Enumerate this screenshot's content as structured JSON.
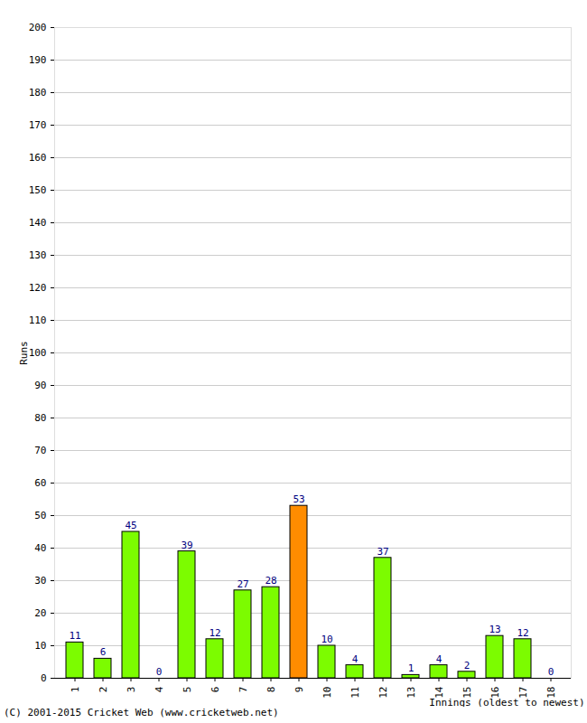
{
  "chart_data": {
    "type": "bar",
    "categories": [
      "1",
      "2",
      "3",
      "4",
      "5",
      "6",
      "7",
      "8",
      "9",
      "10",
      "11",
      "12",
      "13",
      "14",
      "15",
      "16",
      "17",
      "18"
    ],
    "values": [
      11,
      6,
      45,
      0,
      39,
      12,
      27,
      28,
      53,
      10,
      4,
      37,
      1,
      4,
      2,
      13,
      12,
      0
    ],
    "colors": [
      "#7cfc00",
      "#7cfc00",
      "#7cfc00",
      "#7cfc00",
      "#7cfc00",
      "#7cfc00",
      "#7cfc00",
      "#7cfc00",
      "#ff8c00",
      "#7cfc00",
      "#7cfc00",
      "#7cfc00",
      "#7cfc00",
      "#7cfc00",
      "#7cfc00",
      "#7cfc00",
      "#7cfc00",
      "#7cfc00"
    ],
    "x_label": "Innings (oldest to newest)",
    "y_label": "Runs",
    "caption": "(C) 2001-2015 Cricket Web (www.cricketweb.net)",
    "ylim": [
      0,
      200
    ],
    "yticks": [
      0,
      10,
      20,
      30,
      40,
      50,
      60,
      70,
      80,
      90,
      100,
      110,
      120,
      130,
      140,
      150,
      160,
      170,
      180,
      190,
      200
    ],
    "grid": true,
    "data_labels": true
  }
}
